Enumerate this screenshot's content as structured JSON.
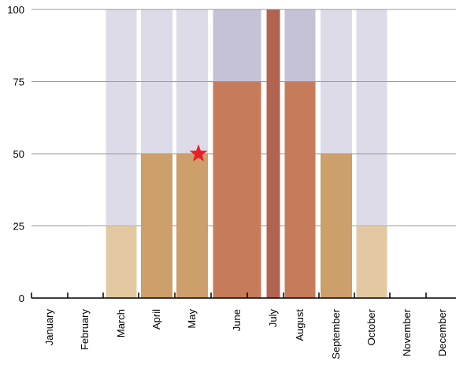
{
  "chart_data": {
    "type": "bar",
    "title": "",
    "xlabel": "",
    "ylabel": "",
    "ylim": [
      0,
      100
    ],
    "yticks": [
      0,
      25,
      50,
      75,
      100
    ],
    "grid": true,
    "categories": [
      "January",
      "February",
      "March",
      "April",
      "May",
      "June",
      "July",
      "August",
      "September",
      "October",
      "November",
      "December"
    ],
    "bars": [
      {
        "category": "March",
        "value": 25,
        "capacity": 100,
        "color": "#e3c9a1"
      },
      {
        "category": "April",
        "value": 50,
        "capacity": 100,
        "color": "#cc9f6b"
      },
      {
        "category": "May",
        "value": 50,
        "capacity": 100,
        "color": "#cc9f6b"
      },
      {
        "category": "June",
        "value": 75,
        "capacity": 100,
        "color": "#c67c5a"
      },
      {
        "category": "July",
        "value": 100,
        "capacity": 100,
        "color": "#b06450"
      },
      {
        "category": "August",
        "value": 75,
        "capacity": 100,
        "color": "#c67c5a"
      },
      {
        "category": "September",
        "value": 50,
        "capacity": 100,
        "color": "#cc9f6b"
      },
      {
        "category": "October",
        "value": 25,
        "capacity": 100,
        "color": "#e3c9a1"
      }
    ],
    "marker": {
      "category": "May",
      "value": 50,
      "shape": "star",
      "color": "#e8202a"
    },
    "colors": {
      "capacity_light": "#dcdbe7",
      "capacity_dark": "#c6c2d6",
      "grid": "#9a9a9a",
      "axis": "#000000"
    }
  }
}
